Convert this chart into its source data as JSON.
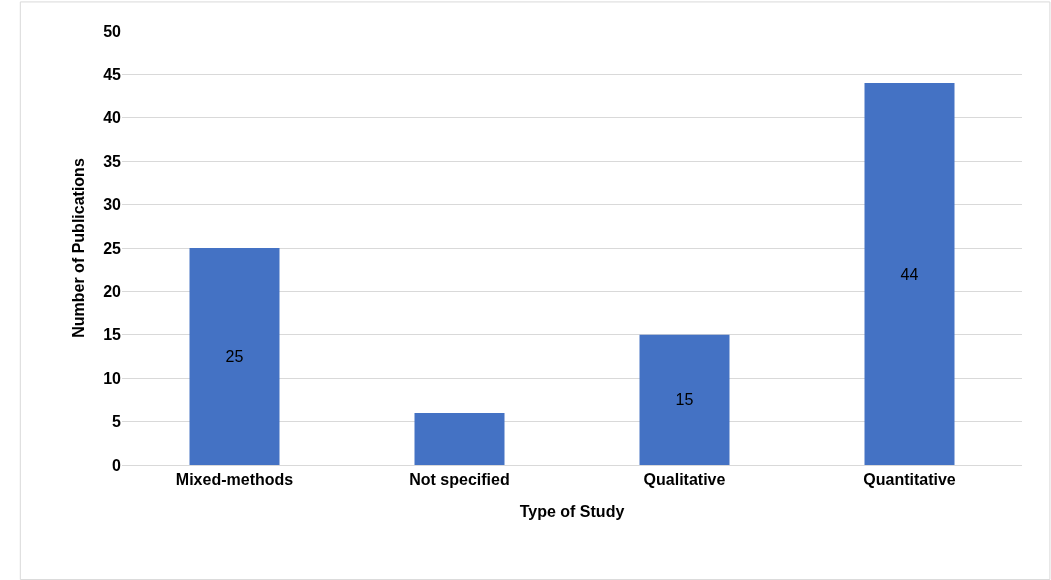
{
  "chart_data": {
    "type": "bar",
    "xlabel": "Type of Study",
    "ylabel": "Number of Publications",
    "categories": [
      "Mixed-methods",
      "Not specified",
      "Qualitative",
      "Quantitative"
    ],
    "values": [
      25,
      6,
      15,
      44
    ],
    "value_labels": [
      "25",
      null,
      "15",
      "44"
    ],
    "color": "#4472c4",
    "ylim": [
      0,
      50
    ],
    "yticks": [
      0,
      5,
      10,
      15,
      20,
      25,
      30,
      35,
      40,
      45,
      50
    ],
    "grid": "y",
    "legend": false
  }
}
